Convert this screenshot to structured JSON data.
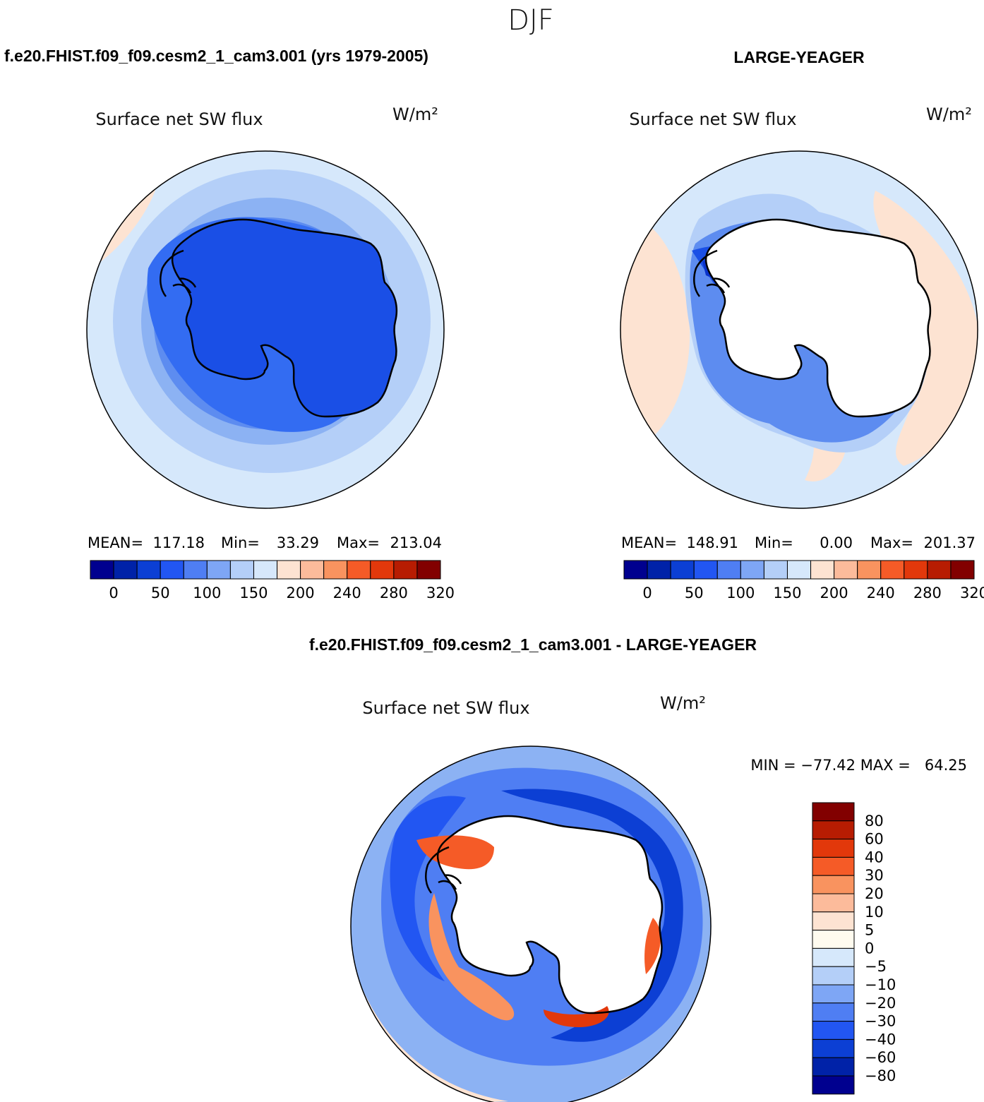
{
  "season": "DJF",
  "colors": {
    "ocean_level_1": "#d6e8fb",
    "ocean_level_2": "#b4cff8",
    "ocean_level_3": "#8cb2f3",
    "ocean_level_4": "#5d8cf0",
    "ocean_level_5": "#336cf2",
    "ocean_level_6": "#1a4fe6",
    "ocean_level_7": "#0933cc",
    "warm_light": "#fde3d2",
    "warm_mid": "#f9a37c",
    "warm_strong": "#f56539",
    "warm_red": "#e4381a",
    "coastline": "#000000",
    "no_data": "#ffffff"
  },
  "panels": {
    "model": {
      "header": "f.e20.FHIST.f09_f09.cesm2_1_cam3.001 (yrs 1979-2005)",
      "variable": "Surface net SW flux",
      "units": "W/m²",
      "stats": {
        "mean_label": "MEAN=",
        "mean": "117.18",
        "min_label": "Min=",
        "min": "33.29",
        "max_label": "Max=",
        "max": "213.04"
      }
    },
    "obs": {
      "header": "LARGE-YEAGER",
      "variable": "Surface net SW flux",
      "units": "W/m²",
      "stats": {
        "mean_label": "MEAN=",
        "mean": "148.91",
        "min_label": "Min=",
        "min": "0.00",
        "max_label": "Max=",
        "max": "201.37"
      }
    },
    "diff": {
      "header": "f.e20.FHIST.f09_f09.cesm2_1_cam3.001 - LARGE-YEAGER",
      "variable": "Surface net SW flux",
      "units": "W/m²",
      "minmax_text": "MIN = −77.42 MAX =   64.25"
    }
  },
  "horizontal_colorbar": {
    "colors": [
      "#00008f",
      "#0022a8",
      "#0c3fd4",
      "#2256f2",
      "#4f7ef3",
      "#7ea6f5",
      "#b4cff8",
      "#d6e8fb",
      "#fde3d2",
      "#fcbb9b",
      "#f9935f",
      "#f55b27",
      "#e2380b",
      "#b71c02",
      "#820000"
    ],
    "tick_labels": [
      "0",
      "50",
      "100",
      "150",
      "200",
      "240",
      "280",
      "320"
    ]
  },
  "vertical_colorbar": {
    "colors": [
      "#820000",
      "#b71c02",
      "#e2380b",
      "#f55b27",
      "#f9935f",
      "#fcbb9b",
      "#fde3d2",
      "#fffbef",
      "#d6e8fb",
      "#b4cff8",
      "#7ea6f5",
      "#4f7ef3",
      "#2256f2",
      "#0c3fd4",
      "#0022a8",
      "#00008f"
    ],
    "tick_labels": [
      "80",
      "60",
      "40",
      "30",
      "20",
      "10",
      "5",
      "0",
      "−5",
      "−10",
      "−20",
      "−30",
      "−40",
      "−60",
      "−80"
    ]
  }
}
